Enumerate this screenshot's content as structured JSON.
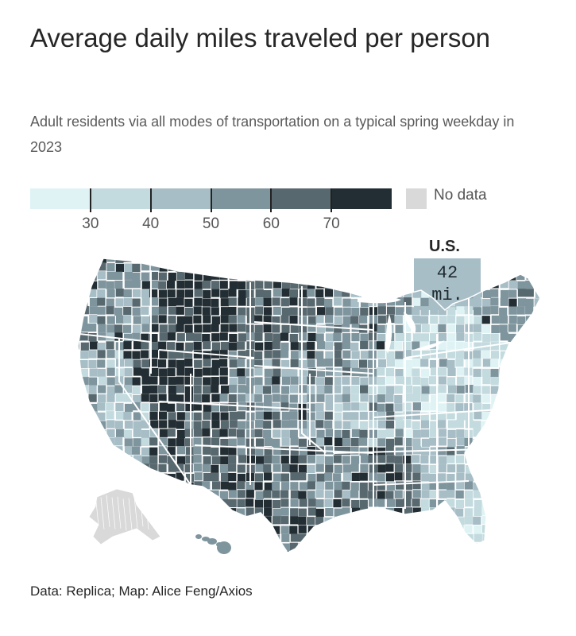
{
  "header": {
    "title": "Average daily miles traveled per person",
    "subtitle": "Adult residents via all modes of transportation on a typical spring weekday in 2023"
  },
  "legend": {
    "bins": [
      {
        "color": "#dff3f5"
      },
      {
        "color": "#c3dbdf"
      },
      {
        "color": "#a7bec6"
      },
      {
        "color": "#7f959e"
      },
      {
        "color": "#58686f"
      },
      {
        "color": "#222e33"
      }
    ],
    "ticks": [
      {
        "value": 30,
        "label": "30"
      },
      {
        "value": 40,
        "label": "40"
      },
      {
        "value": 50,
        "label": "50"
      },
      {
        "value": 60,
        "label": "60"
      },
      {
        "value": 70,
        "label": "70"
      }
    ],
    "nodata": {
      "label": "No data",
      "color": "#d9d9d9"
    }
  },
  "national": {
    "label": "U.S.",
    "value_text": "42",
    "unit_text": "mi.",
    "value": 42,
    "color": "#a7bec6"
  },
  "map": {
    "regions": [
      {
        "name": "pacific-northwest",
        "bin": 3
      },
      {
        "name": "northern-rockies",
        "bin": 5
      },
      {
        "name": "northern-plains",
        "bin": 4
      },
      {
        "name": "upper-midwest",
        "bin": 3
      },
      {
        "name": "great-lakes",
        "bin": 1
      },
      {
        "name": "northeast",
        "bin": 1
      },
      {
        "name": "new-england",
        "bin": 3
      },
      {
        "name": "california",
        "bin": 2
      },
      {
        "name": "great-basin",
        "bin": 5
      },
      {
        "name": "southwest",
        "bin": 4
      },
      {
        "name": "central-plains",
        "bin": 3
      },
      {
        "name": "midwest",
        "bin": 2
      },
      {
        "name": "appalachia",
        "bin": 1
      },
      {
        "name": "mid-atlantic",
        "bin": 1
      },
      {
        "name": "texas",
        "bin": 4
      },
      {
        "name": "south-central",
        "bin": 3
      },
      {
        "name": "deep-south",
        "bin": 4
      },
      {
        "name": "southeast",
        "bin": 2
      },
      {
        "name": "florida",
        "bin": 1
      },
      {
        "name": "alaska",
        "bin": "nodata"
      },
      {
        "name": "hawaii",
        "bin": 3
      }
    ]
  },
  "footer": {
    "source": "Data: Replica; Map: Alice Feng/Axios"
  }
}
